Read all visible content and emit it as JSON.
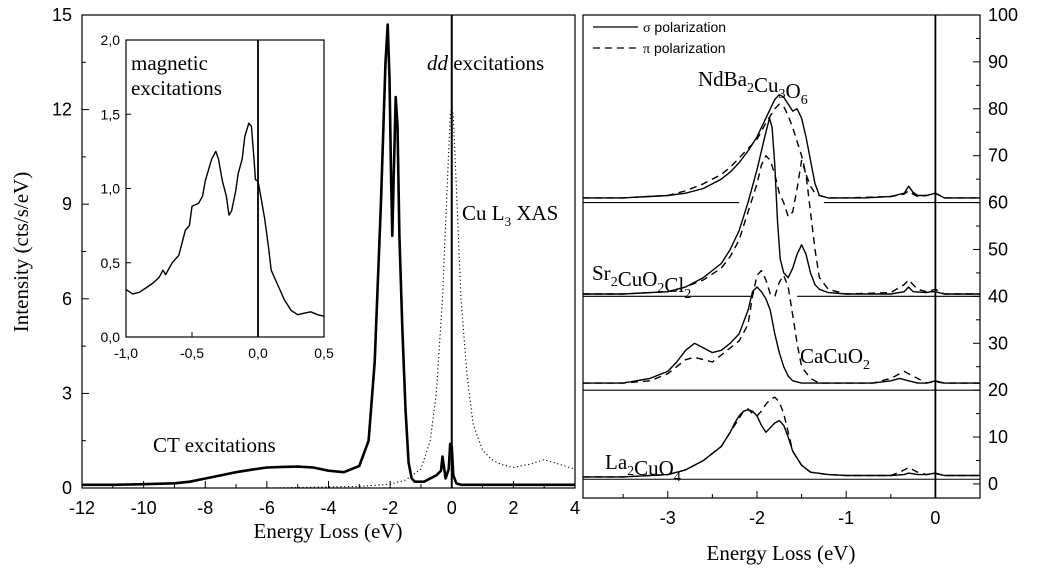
{
  "chart_data": [
    {
      "id": "left",
      "type": "line",
      "xlabel": "Energy Loss (eV)",
      "ylabel": "Intensity (cts/s/eV)",
      "xlim": [
        -12,
        4
      ],
      "ylim": [
        0,
        15
      ],
      "xticks": [
        -12,
        -10,
        -8,
        -6,
        -4,
        -2,
        0,
        2,
        4
      ],
      "xtick_labels": [
        "-12",
        "-10",
        "-8",
        "-6",
        "-4",
        "-2",
        "0",
        "2",
        "4"
      ],
      "yticks": [
        0,
        3,
        6,
        9,
        12,
        15
      ],
      "ytick_labels": [
        "0",
        "3",
        "6",
        "9",
        "12",
        "15"
      ],
      "annotations": {
        "dd": "dd",
        "dd_rest": " excitations",
        "cu_main": "Cu L",
        "cu_sub": "3",
        "cu_rest": " XAS",
        "ct": "CT excitations"
      },
      "series": [
        {
          "style": "solid-thick",
          "x": [
            -12,
            -11,
            -10,
            -9,
            -8.5,
            -8,
            -7.5,
            -7,
            -6.5,
            -6,
            -5.5,
            -5,
            -4.5,
            -4,
            -3.5,
            -3,
            -2.7,
            -2.5,
            -2.3,
            -2.15,
            -2.08,
            -2.02,
            -1.97,
            -1.93,
            -1.88,
            -1.82,
            -1.76,
            -1.7,
            -1.6,
            -1.5,
            -1.4,
            -1.3,
            -1.2,
            -1.1,
            -0.9,
            -0.7,
            -0.5,
            -0.35,
            -0.3,
            -0.2,
            -0.1,
            -0.05,
            0,
            0.05,
            0.15,
            0.3,
            0.5,
            1,
            2,
            3,
            4
          ],
          "y": [
            0.1,
            0.1,
            0.12,
            0.15,
            0.2,
            0.3,
            0.4,
            0.5,
            0.58,
            0.65,
            0.67,
            0.68,
            0.65,
            0.55,
            0.5,
            0.7,
            1.5,
            4,
            9,
            13.5,
            14.7,
            13,
            10,
            8,
            10,
            12.4,
            11.5,
            8,
            5,
            2.5,
            0.8,
            0.3,
            0.2,
            0.2,
            0.2,
            0.3,
            0.4,
            0.55,
            1.0,
            0.3,
            0.6,
            1.4,
            1.3,
            0.4,
            0.15,
            0.1,
            0.1,
            0.1,
            0.1,
            0.1,
            0.1
          ]
        },
        {
          "style": "dotted",
          "x": [
            -12,
            -6,
            -3,
            -2,
            -1.5,
            -1,
            -0.7,
            -0.5,
            -0.3,
            -0.15,
            -0.05,
            0,
            0.05,
            0.15,
            0.3,
            0.5,
            0.7,
            1,
            1.3,
            1.6,
            2,
            2.5,
            3,
            3.5,
            4
          ],
          "y": [
            0,
            0,
            0.05,
            0.12,
            0.25,
            0.6,
            1.5,
            3,
            6,
            9.5,
            11.8,
            12.1,
            11.8,
            9.5,
            6,
            3.5,
            2,
            1.2,
            0.9,
            0.75,
            0.65,
            0.75,
            0.9,
            0.75,
            0.6
          ]
        }
      ]
    },
    {
      "id": "inset",
      "type": "line",
      "xlim": [
        -1,
        0.5
      ],
      "ylim": [
        0,
        2
      ],
      "xticks": [
        -1,
        -0.5,
        0,
        0.5
      ],
      "xtick_labels": [
        "-1,0",
        "-0,5",
        "0,0",
        "0,5"
      ],
      "yticks": [
        0,
        0.5,
        1,
        1.5,
        2
      ],
      "ytick_labels": [
        "0,0",
        "0,5",
        "1,0",
        "1,5",
        "2,0"
      ],
      "annotations": {
        "line1": "magnetic",
        "line2": "excitations"
      },
      "series": [
        {
          "style": "solid",
          "x": [
            -1,
            -0.95,
            -0.9,
            -0.85,
            -0.8,
            -0.75,
            -0.72,
            -0.7,
            -0.65,
            -0.6,
            -0.55,
            -0.52,
            -0.5,
            -0.45,
            -0.42,
            -0.4,
            -0.35,
            -0.32,
            -0.3,
            -0.27,
            -0.24,
            -0.22,
            -0.2,
            -0.17,
            -0.15,
            -0.12,
            -0.1,
            -0.07,
            -0.05,
            -0.03,
            -0.02,
            0,
            0.03,
            0.05,
            0.08,
            0.1,
            0.15,
            0.2,
            0.25,
            0.3,
            0.35,
            0.4,
            0.45,
            0.5
          ],
          "y": [
            0.32,
            0.29,
            0.3,
            0.33,
            0.36,
            0.4,
            0.45,
            0.42,
            0.5,
            0.55,
            0.72,
            0.75,
            0.88,
            0.9,
            0.95,
            1.05,
            1.2,
            1.25,
            1.2,
            1.05,
            0.95,
            0.82,
            0.85,
            0.98,
            1.1,
            1.2,
            1.35,
            1.44,
            1.42,
            1.2,
            1.06,
            1.05,
            0.9,
            0.8,
            0.6,
            0.45,
            0.35,
            0.25,
            0.18,
            0.15,
            0.16,
            0.17,
            0.15,
            0.14
          ]
        }
      ]
    },
    {
      "id": "right",
      "type": "line",
      "xlabel": "Energy Loss (eV)",
      "xlim": [
        -3.95,
        0.5
      ],
      "ylim": [
        -3,
        100
      ],
      "xticks": [
        -3,
        -2,
        -1,
        0
      ],
      "xtick_labels": [
        "-3",
        "-2",
        "-1",
        "0"
      ],
      "yticks": [
        0,
        10,
        20,
        30,
        40,
        50,
        60,
        70,
        80,
        90,
        100
      ],
      "ytick_labels": [
        "0",
        "10",
        "20",
        "30",
        "40",
        "50",
        "60",
        "70",
        "80",
        "90",
        "100"
      ],
      "legend": {
        "placement": "top-left",
        "entries": [
          {
            "symbol": "σ",
            "text": " polarization",
            "style": "solid"
          },
          {
            "symbol": "π",
            "text": " polarization",
            "style": "dashed"
          }
        ]
      },
      "labels": {
        "ndba": {
          "parts": [
            [
              "Nd",
              ""
            ],
            [
              "Ba",
              "2"
            ],
            [
              "Cu",
              "3"
            ],
            [
              "O",
              "6"
            ]
          ]
        },
        "sr": {
          "parts": [
            [
              "Sr",
              "2"
            ],
            [
              "CuO",
              "2"
            ],
            [
              "Cl",
              "2"
            ]
          ]
        },
        "ca": {
          "parts": [
            [
              "CaCuO",
              "2"
            ]
          ]
        },
        "la": {
          "parts": [
            [
              "La",
              "2"
            ],
            [
              "CuO",
              "4"
            ]
          ]
        }
      },
      "baselines": [
        {
          "y": 60,
          "segments": [
            [
              -3.95,
              -2.2
            ],
            [
              -1.25,
              0.5
            ]
          ]
        },
        {
          "y": 40,
          "segments": [
            [
              -3.95,
              -2.05
            ],
            [
              -1.55,
              0.5
            ]
          ]
        },
        {
          "y": 20,
          "segments": [
            [
              -3.95,
              0.5
            ]
          ]
        },
        {
          "y": 1,
          "segments": [
            [
              -3.95,
              0.5
            ]
          ]
        }
      ],
      "series": [
        {
          "name": "NdBa2Cu3O6 σ",
          "style": "solid",
          "x": [
            -3.95,
            -3.5,
            -3,
            -2.8,
            -2.6,
            -2.4,
            -2.3,
            -2.2,
            -2.1,
            -2,
            -1.95,
            -1.9,
            -1.85,
            -1.8,
            -1.75,
            -1.7,
            -1.65,
            -1.6,
            -1.55,
            -1.5,
            -1.45,
            -1.4,
            -1.35,
            -1.3,
            -1.2,
            -1,
            -0.8,
            -0.5,
            -0.35,
            -0.3,
            -0.25,
            -0.2,
            -0.1,
            0,
            0.1,
            0.5
          ],
          "y": [
            61,
            61,
            61.5,
            62,
            63,
            65,
            66.5,
            68.5,
            71,
            74,
            76,
            78,
            80,
            82,
            83,
            82.5,
            81,
            79.5,
            80,
            78,
            74,
            69,
            64,
            61.5,
            61,
            61,
            61,
            61.3,
            62,
            63.5,
            62.2,
            61.5,
            61.5,
            62,
            61,
            61
          ]
        },
        {
          "name": "NdBa2Cu3O6 π",
          "style": "dashed",
          "x": [
            -3.95,
            -3.5,
            -3,
            -2.8,
            -2.6,
            -2.4,
            -2.3,
            -2.2,
            -2.1,
            -2,
            -1.9,
            -1.8,
            -1.75,
            -1.7,
            -1.65,
            -1.6,
            -1.55,
            -1.5,
            -1.45,
            -1.4,
            -1.35,
            -1.3,
            -1.2,
            -1,
            -0.5,
            -0.35,
            -0.3,
            -0.25,
            -0.2,
            -0.1,
            0,
            0.1,
            0.5
          ],
          "y": [
            61,
            61,
            61.5,
            62.5,
            64,
            66,
            67.5,
            69.5,
            71.5,
            73.5,
            77,
            80,
            81,
            80.5,
            78.5,
            76,
            73,
            70,
            66,
            63.5,
            62,
            61.5,
            61,
            61,
            61.3,
            61.8,
            62.5,
            61.8,
            61.3,
            61.5,
            62,
            61,
            61
          ]
        },
        {
          "name": "Sr2CuO2Cl2 σ",
          "style": "solid",
          "x": [
            -3.95,
            -3.5,
            -3,
            -2.8,
            -2.6,
            -2.4,
            -2.3,
            -2.2,
            -2.1,
            -2,
            -1.95,
            -1.9,
            -1.86,
            -1.83,
            -1.8,
            -1.77,
            -1.74,
            -1.7,
            -1.65,
            -1.6,
            -1.55,
            -1.5,
            -1.45,
            -1.4,
            -1.35,
            -1.3,
            -1.2,
            -1,
            -0.5,
            -0.35,
            -0.3,
            -0.25,
            -0.1,
            -0.05,
            0,
            0.1,
            0.5
          ],
          "y": [
            40.5,
            40.5,
            41,
            42,
            44,
            47,
            50,
            54,
            60,
            67,
            71,
            75,
            78,
            76,
            68,
            56,
            48,
            45,
            44,
            46,
            49,
            51,
            49,
            45,
            42.5,
            41.5,
            40.8,
            40.5,
            40.5,
            41,
            42,
            41,
            40.8,
            41,
            41,
            40.5,
            40.5
          ]
        },
        {
          "name": "Sr2CuO2Cl2 π",
          "style": "dashed",
          "x": [
            -3.95,
            -3.5,
            -3,
            -2.8,
            -2.6,
            -2.4,
            -2.3,
            -2.2,
            -2.1,
            -2,
            -1.95,
            -1.9,
            -1.85,
            -1.8,
            -1.75,
            -1.7,
            -1.65,
            -1.6,
            -1.55,
            -1.5,
            -1.45,
            -1.4,
            -1.35,
            -1.3,
            -1.2,
            -1,
            -0.5,
            -0.35,
            -0.3,
            -0.25,
            -0.2,
            -0.1,
            0,
            0.1,
            0.5
          ],
          "y": [
            40.5,
            40.5,
            41,
            42,
            43.5,
            46,
            48.5,
            52,
            58,
            64,
            68,
            70,
            69,
            66,
            62,
            60,
            57,
            58,
            63,
            69,
            66,
            58,
            50,
            44,
            41.5,
            40.5,
            40.8,
            42.5,
            43.5,
            42.5,
            41.5,
            41,
            41.5,
            40.5,
            40.5
          ]
        },
        {
          "name": "CaCuO2 σ",
          "style": "solid",
          "x": [
            -3.95,
            -3.5,
            -3.2,
            -3,
            -2.9,
            -2.8,
            -2.7,
            -2.6,
            -2.5,
            -2.4,
            -2.3,
            -2.2,
            -2.1,
            -2.05,
            -2,
            -1.95,
            -1.9,
            -1.85,
            -1.8,
            -1.75,
            -1.7,
            -1.65,
            -1.6,
            -1.5,
            -1.3,
            -1,
            -0.7,
            -0.5,
            -0.4,
            -0.3,
            -0.2,
            -0.1,
            0,
            0.1,
            0.5
          ],
          "y": [
            21.5,
            21.5,
            22.5,
            24,
            26,
            28.5,
            30,
            29,
            28,
            28.5,
            30,
            32,
            37,
            41,
            42,
            41,
            39.5,
            37,
            32,
            28,
            25,
            23,
            22,
            21.5,
            21.5,
            21.5,
            21.5,
            22,
            22.5,
            22,
            21.5,
            21.5,
            22,
            21.5,
            21.5
          ]
        },
        {
          "name": "CaCuO2 π",
          "style": "dashed",
          "x": [
            -3.95,
            -3.5,
            -3.2,
            -3,
            -2.9,
            -2.8,
            -2.7,
            -2.6,
            -2.5,
            -2.4,
            -2.3,
            -2.2,
            -2.1,
            -2.05,
            -2,
            -1.95,
            -1.9,
            -1.85,
            -1.8,
            -1.75,
            -1.7,
            -1.65,
            -1.6,
            -1.55,
            -1.5,
            -1.4,
            -1.3,
            -1,
            -0.7,
            -0.5,
            -0.4,
            -0.35,
            -0.3,
            -0.2,
            -0.1,
            0,
            0.1,
            0.5
          ],
          "y": [
            21.5,
            21.5,
            22,
            23.5,
            25,
            26.5,
            27,
            26.5,
            26,
            27.5,
            29,
            30.5,
            34,
            40,
            44.5,
            45.5,
            43.5,
            40.5,
            40,
            43,
            44.5,
            42,
            36,
            30,
            25,
            22.5,
            21.5,
            21.5,
            21.5,
            22.5,
            23.5,
            24,
            23.5,
            22.5,
            21.5,
            21.8,
            21.5,
            21.5
          ]
        },
        {
          "name": "La2CuO4 σ",
          "style": "solid",
          "x": [
            -3.95,
            -3.5,
            -3,
            -2.8,
            -2.6,
            -2.4,
            -2.3,
            -2.25,
            -2.2,
            -2.15,
            -2.1,
            -2.05,
            -2,
            -1.95,
            -1.9,
            -1.85,
            -1.8,
            -1.75,
            -1.7,
            -1.65,
            -1.6,
            -1.5,
            -1.4,
            -1.2,
            -1,
            -0.5,
            -0.35,
            -0.3,
            -0.2,
            -0.1,
            0,
            0.1,
            0.5
          ],
          "y": [
            1.5,
            1.5,
            2,
            3,
            5,
            8,
            11,
            13,
            14.5,
            15.5,
            15.8,
            15.5,
            14.5,
            12.5,
            11,
            12,
            13,
            13.5,
            12.5,
            10,
            7,
            4,
            2.5,
            2,
            1.8,
            1.8,
            2,
            2.3,
            2,
            2,
            2.3,
            1.8,
            1.8
          ]
        },
        {
          "name": "La2CuO4 π",
          "style": "dashed",
          "x": [
            -3.95,
            -3.5,
            -3,
            -2.8,
            -2.6,
            -2.4,
            -2.3,
            -2.2,
            -2.15,
            -2.1,
            -2.05,
            -2,
            -1.95,
            -1.9,
            -1.85,
            -1.8,
            -1.75,
            -1.7,
            -1.65,
            -1.6,
            -1.5,
            -1.4,
            -1.2,
            -1,
            -0.5,
            -0.4,
            -0.35,
            -0.3,
            -0.2,
            -0.1,
            0,
            0.1,
            0.5
          ],
          "y": [
            1.5,
            1.5,
            2,
            3,
            5,
            8,
            11,
            14,
            15.5,
            16,
            15,
            14.5,
            15.5,
            17,
            18,
            18.5,
            17.5,
            15,
            11,
            7,
            4,
            2.5,
            2,
            1.8,
            1.8,
            2.5,
            3,
            3.5,
            2.5,
            2,
            2.2,
            1.8,
            1.8
          ]
        }
      ]
    }
  ]
}
